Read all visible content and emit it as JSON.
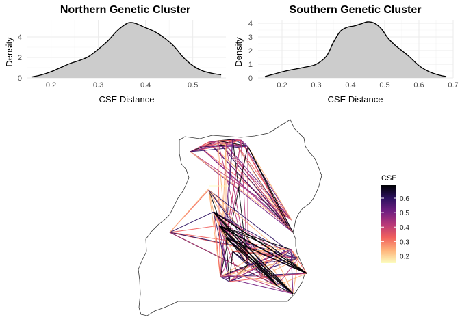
{
  "chart_data": [
    {
      "type": "area",
      "subtype": "density",
      "title": "Northern Genetic Cluster",
      "xlabel": "CSE Distance",
      "ylabel": "Density",
      "xlim": [
        0.15,
        0.57
      ],
      "ylim": [
        0,
        5.6
      ],
      "xticks": [
        0.2,
        0.3,
        0.4,
        0.5
      ],
      "xtick_labels": [
        "0.2",
        "0.3",
        "0.4",
        "0.5"
      ],
      "yticks": [
        0,
        2,
        4
      ],
      "ytick_labels": [
        "0",
        "2",
        "4"
      ],
      "fill_color": "#cccccc",
      "x": [
        0.16,
        0.18,
        0.2,
        0.22,
        0.24,
        0.26,
        0.28,
        0.3,
        0.32,
        0.34,
        0.36,
        0.37,
        0.38,
        0.4,
        0.42,
        0.44,
        0.46,
        0.48,
        0.5,
        0.52,
        0.54,
        0.56
      ],
      "y": [
        0.1,
        0.3,
        0.6,
        1.0,
        1.4,
        1.7,
        2.1,
        2.8,
        3.6,
        4.6,
        5.3,
        5.4,
        5.3,
        4.9,
        4.5,
        3.9,
        3.1,
        2.0,
        1.2,
        0.7,
        0.45,
        0.3
      ],
      "grid": true
    },
    {
      "type": "area",
      "subtype": "density",
      "title": "Southern Genetic Cluster",
      "xlabel": "CSE Distance",
      "ylabel": "Density",
      "xlim": [
        0.13,
        0.7
      ],
      "ylim": [
        0,
        4.2
      ],
      "xticks": [
        0.2,
        0.3,
        0.4,
        0.5,
        0.6,
        0.7
      ],
      "xtick_labels": [
        "0.2",
        "0.3",
        "0.4",
        "0.5",
        "0.6",
        "0.7"
      ],
      "yticks": [
        0,
        1,
        2,
        3,
        4
      ],
      "ytick_labels": [
        "0",
        "1",
        "2",
        "3",
        "4"
      ],
      "fill_color": "#cccccc",
      "x": [
        0.15,
        0.18,
        0.21,
        0.24,
        0.27,
        0.3,
        0.33,
        0.35,
        0.37,
        0.39,
        0.41,
        0.43,
        0.45,
        0.47,
        0.49,
        0.51,
        0.53,
        0.55,
        0.57,
        0.6,
        0.63,
        0.66,
        0.68
      ],
      "y": [
        0.1,
        0.3,
        0.5,
        0.65,
        0.8,
        1.0,
        1.6,
        2.6,
        3.4,
        3.7,
        3.8,
        3.95,
        4.1,
        4.0,
        3.6,
        2.9,
        2.4,
        2.0,
        1.6,
        0.9,
        0.45,
        0.2,
        0.1
      ],
      "grid": true
    },
    {
      "type": "network-map",
      "legend": {
        "title": "CSE",
        "ticks": [
          0.2,
          0.3,
          0.4,
          0.5,
          0.6
        ],
        "tick_labels": [
          "0.2",
          "0.3",
          "0.4",
          "0.5",
          "0.6"
        ],
        "range": [
          0.15,
          0.69
        ],
        "colors": [
          "#fcfdbf",
          "#feb47b",
          "#f1605d",
          "#b63779",
          "#721f81",
          "#2d1160",
          "#000004"
        ],
        "placement": "right"
      },
      "grid": false
    }
  ]
}
